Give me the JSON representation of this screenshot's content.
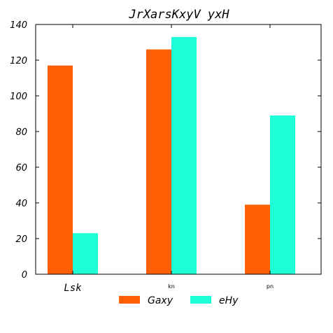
{
  "chart_data": {
    "type": "bar",
    "title": "JrXarsKxyV yxH",
    "xlabel": "",
    "ylabel": "",
    "categories": [
      "Lsk",
      "kn",
      "pn"
    ],
    "series": [
      {
        "name": "Gaxy",
        "values": [
          117,
          126,
          39
        ],
        "color": "#ff5f00"
      },
      {
        "name": "eHy",
        "values": [
          23,
          133,
          89
        ],
        "color": "#1fffd7"
      }
    ],
    "ylim": [
      0,
      140
    ],
    "yticks": [
      0,
      20,
      40,
      60,
      80,
      100,
      120,
      140
    ],
    "grid": false,
    "legend_position": "bottom-center"
  }
}
